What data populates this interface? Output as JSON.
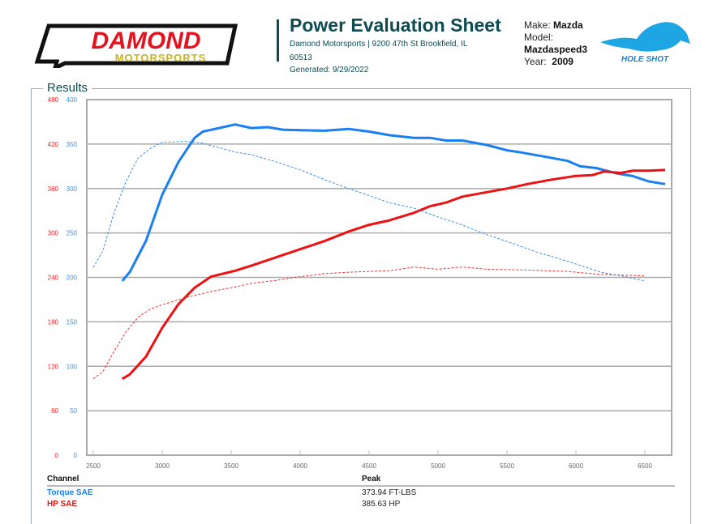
{
  "header": {
    "logo_text": "DAMOND",
    "logo_sub": "MOTORSPORTS",
    "title": "Power Evaluation Sheet",
    "address": "Damond Motorsports | 9200 47th St Brookfield, IL",
    "address2": "60513",
    "generated": "Generated: 9/29/2022",
    "make_label": "Make:",
    "make": "Mazda",
    "model_label": "Model:",
    "model": "Mazdaspeed3",
    "year_label": "Year:",
    "year": "2009",
    "badge_text": "HOLE SHOT"
  },
  "section_title": "Results",
  "chart_data": {
    "type": "line",
    "xlim": [
      2453,
      6694
    ],
    "x_ticks": [
      2500,
      3000,
      3500,
      4000,
      4500,
      5000,
      5500,
      6000,
      6500
    ],
    "y_left_red": {
      "ticks": [
        0,
        60,
        120,
        180,
        240,
        300,
        360,
        420,
        480
      ],
      "lim": [
        0,
        480
      ],
      "color": "#ff1a1a"
    },
    "y_left_blue": {
      "ticks": [
        0,
        50,
        100,
        150,
        200,
        250,
        300,
        350,
        400
      ],
      "lim": [
        0,
        400
      ],
      "color": "#3a8ee6"
    },
    "grid": true,
    "series": [
      {
        "name": "Torque SAE",
        "axis": "blue",
        "style": "solid",
        "color": "#1a7ff0",
        "x": [
          2710,
          2765,
          2882,
          3000,
          3118,
          3235,
          3294,
          3412,
          3529,
          3647,
          3765,
          3882,
          4176,
          4353,
          4500,
          4647,
          4823,
          4941,
          5059,
          5176,
          5353,
          5500,
          5588,
          5765,
          5941,
          6029,
          6147,
          6294,
          6412,
          6529,
          6647
        ],
        "y": [
          196,
          206,
          241,
          293,
          330,
          357,
          364,
          368,
          372,
          368,
          369,
          366,
          365,
          367,
          364,
          360,
          357,
          357,
          354,
          354,
          349,
          343,
          341,
          336,
          331,
          325,
          323,
          317,
          314,
          308,
          305
        ]
      },
      {
        "name": "HP SAE",
        "axis": "red",
        "style": "solid",
        "color": "#ee1111",
        "x": [
          2710,
          2765,
          2882,
          3000,
          3118,
          3235,
          3353,
          3529,
          3647,
          3824,
          4000,
          4176,
          4353,
          4500,
          4647,
          4823,
          4941,
          5059,
          5176,
          5353,
          5500,
          5647,
          5823,
          6000,
          6118,
          6206,
          6324,
          6412,
          6529,
          6647
        ],
        "y": [
          103,
          109,
          133,
          172,
          204,
          226,
          241,
          249,
          256,
          267,
          278,
          289,
          302,
          311,
          317,
          327,
          336,
          341,
          349,
          355,
          360,
          366,
          372,
          377,
          378,
          383,
          381,
          384,
          384,
          385
        ]
      },
      {
        "axis": "blue",
        "style": "dashed",
        "color": "#3a8ee6",
        "x": [
          2500,
          2570,
          2647,
          2735,
          2824,
          2912,
          3000,
          3176,
          3294,
          3529,
          3647,
          3824,
          4000,
          4176,
          4353,
          4500,
          4647,
          4823,
          5000,
          5176,
          5353,
          5529,
          5706,
          5941,
          6176,
          6353,
          6500
        ],
        "y": [
          211,
          230,
          271,
          307,
          334,
          345,
          352,
          353,
          351,
          341,
          338,
          330,
          321,
          310,
          300,
          292,
          284,
          278,
          268,
          259,
          248,
          239,
          229,
          218,
          206,
          201,
          196
        ]
      },
      {
        "axis": "red",
        "style": "dashed",
        "color": "#ee3333",
        "x": [
          2500,
          2570,
          2647,
          2735,
          2824,
          2912,
          3000,
          3176,
          3353,
          3529,
          3647,
          3824,
          4000,
          4176,
          4353,
          4647,
          4823,
          5000,
          5176,
          5353,
          5647,
          5941,
          6176,
          6500
        ],
        "y": [
          103,
          113,
          139,
          166,
          186,
          197,
          203,
          213,
          221,
          227,
          232,
          236,
          241,
          245,
          247,
          249,
          254,
          251,
          254,
          251,
          250,
          248,
          244,
          242
        ]
      }
    ]
  },
  "table": {
    "headers": [
      "Channel",
      "Peak"
    ],
    "rows": [
      {
        "channel": "Torque SAE",
        "peak": "373.94 FT-LBS",
        "color": "#1a7ff0"
      },
      {
        "channel": "HP SAE",
        "peak": "385.63 HP",
        "color": "#ee1111"
      }
    ]
  }
}
